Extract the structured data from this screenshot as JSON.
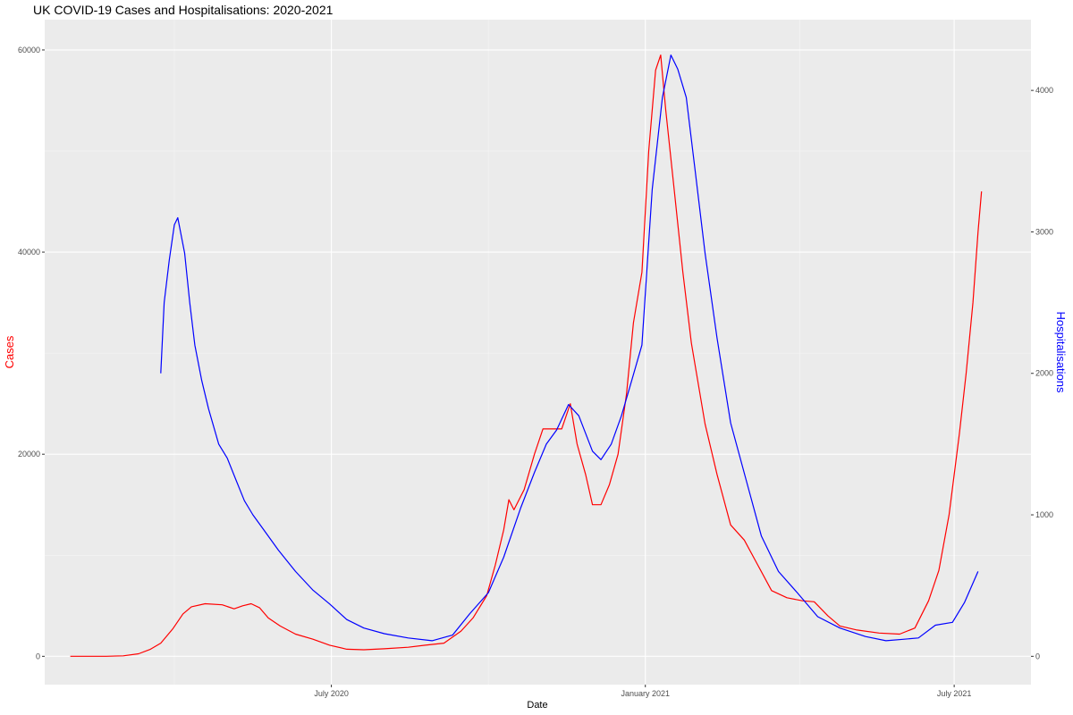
{
  "chart_data": {
    "type": "line",
    "title": "UK COVID-19 Cases and Hospitalisations: 2020-2021",
    "xlabel": "Date",
    "ylabel_left": "Cases",
    "ylabel_right": "Hospitalisations",
    "x_ticks": [
      "July 2020",
      "January 2021",
      "July 2021"
    ],
    "x_tick_dates": [
      "2020-07-01",
      "2021-01-01",
      "2021-07-01"
    ],
    "xlim": [
      "2020-01-15",
      "2021-08-15"
    ],
    "y_left_ticks": [
      0,
      20000,
      40000,
      60000
    ],
    "y_left_lim": [
      -2800,
      63000
    ],
    "y_right_ticks": [
      0,
      1000,
      2000,
      3000,
      4000
    ],
    "y_right_lim": [
      -200,
      4500
    ],
    "grid": true,
    "colors": {
      "cases": "#ff0000",
      "hospitalisations": "#0000ff",
      "panel": "#ebebeb",
      "grid": "#ffffff"
    },
    "series": [
      {
        "name": "Cases",
        "axis": "left",
        "color": "#ff0000",
        "points": [
          [
            "2020-01-30",
            0
          ],
          [
            "2020-02-20",
            0
          ],
          [
            "2020-03-01",
            50
          ],
          [
            "2020-03-10",
            250
          ],
          [
            "2020-03-17",
            700
          ],
          [
            "2020-03-23",
            1300
          ],
          [
            "2020-03-30",
            2700
          ],
          [
            "2020-04-05",
            4200
          ],
          [
            "2020-04-10",
            4900
          ],
          [
            "2020-04-18",
            5200
          ],
          [
            "2020-04-28",
            5100
          ],
          [
            "2020-05-05",
            4700
          ],
          [
            "2020-05-10",
            5000
          ],
          [
            "2020-05-15",
            5200
          ],
          [
            "2020-05-20",
            4800
          ],
          [
            "2020-05-25",
            3800
          ],
          [
            "2020-06-01",
            3000
          ],
          [
            "2020-06-10",
            2200
          ],
          [
            "2020-06-20",
            1700
          ],
          [
            "2020-06-30",
            1100
          ],
          [
            "2020-07-10",
            700
          ],
          [
            "2020-07-20",
            650
          ],
          [
            "2020-08-01",
            750
          ],
          [
            "2020-08-15",
            900
          ],
          [
            "2020-08-25",
            1100
          ],
          [
            "2020-09-05",
            1300
          ],
          [
            "2020-09-15",
            2500
          ],
          [
            "2020-09-22",
            3800
          ],
          [
            "2020-09-30",
            6000
          ],
          [
            "2020-10-05",
            9000
          ],
          [
            "2020-10-10",
            12500
          ],
          [
            "2020-10-13",
            15500
          ],
          [
            "2020-10-16",
            14500
          ],
          [
            "2020-10-22",
            16500
          ],
          [
            "2020-10-28",
            20000
          ],
          [
            "2020-11-02",
            22500
          ],
          [
            "2020-11-07",
            22500
          ],
          [
            "2020-11-13",
            22500
          ],
          [
            "2020-11-18",
            25000
          ],
          [
            "2020-11-22",
            21000
          ],
          [
            "2020-11-27",
            18000
          ],
          [
            "2020-12-01",
            15000
          ],
          [
            "2020-12-06",
            15000
          ],
          [
            "2020-12-11",
            17000
          ],
          [
            "2020-12-16",
            20000
          ],
          [
            "2020-12-21",
            26000
          ],
          [
            "2020-12-25",
            33000
          ],
          [
            "2020-12-30",
            38000
          ],
          [
            "2021-01-03",
            50000
          ],
          [
            "2021-01-07",
            58000
          ],
          [
            "2021-01-10",
            59500
          ],
          [
            "2021-01-13",
            54000
          ],
          [
            "2021-01-18",
            46000
          ],
          [
            "2021-01-23",
            38000
          ],
          [
            "2021-01-28",
            31000
          ],
          [
            "2021-02-05",
            23000
          ],
          [
            "2021-02-12",
            18000
          ],
          [
            "2021-02-20",
            13000
          ],
          [
            "2021-02-28",
            11500
          ],
          [
            "2021-03-08",
            9000
          ],
          [
            "2021-03-16",
            6500
          ],
          [
            "2021-03-25",
            5800
          ],
          [
            "2021-04-03",
            5500
          ],
          [
            "2021-04-10",
            5400
          ],
          [
            "2021-04-18",
            4000
          ],
          [
            "2021-04-25",
            3000
          ],
          [
            "2021-05-05",
            2600
          ],
          [
            "2021-05-18",
            2300
          ],
          [
            "2021-05-30",
            2200
          ],
          [
            "2021-06-08",
            2800
          ],
          [
            "2021-06-16",
            5500
          ],
          [
            "2021-06-22",
            8500
          ],
          [
            "2021-06-28",
            14000
          ],
          [
            "2021-07-04",
            22000
          ],
          [
            "2021-07-08",
            28000
          ],
          [
            "2021-07-12",
            35000
          ],
          [
            "2021-07-15",
            42000
          ],
          [
            "2021-07-17",
            46000
          ]
        ]
      },
      {
        "name": "Hospitalisations",
        "axis": "right",
        "color": "#0000ff",
        "points": [
          [
            "2020-03-23",
            2000
          ],
          [
            "2020-03-25",
            2500
          ],
          [
            "2020-03-28",
            2800
          ],
          [
            "2020-03-31",
            3050
          ],
          [
            "2020-04-02",
            3100
          ],
          [
            "2020-04-06",
            2850
          ],
          [
            "2020-04-09",
            2500
          ],
          [
            "2020-04-12",
            2200
          ],
          [
            "2020-04-16",
            1950
          ],
          [
            "2020-04-20",
            1750
          ],
          [
            "2020-04-26",
            1500
          ],
          [
            "2020-05-01",
            1400
          ],
          [
            "2020-05-06",
            1250
          ],
          [
            "2020-05-11",
            1100
          ],
          [
            "2020-05-16",
            1000
          ],
          [
            "2020-05-22",
            900
          ],
          [
            "2020-05-31",
            750
          ],
          [
            "2020-06-10",
            600
          ],
          [
            "2020-06-20",
            470
          ],
          [
            "2020-06-30",
            370
          ],
          [
            "2020-07-10",
            260
          ],
          [
            "2020-07-20",
            200
          ],
          [
            "2020-08-01",
            160
          ],
          [
            "2020-08-15",
            130
          ],
          [
            "2020-08-29",
            110
          ],
          [
            "2020-09-10",
            150
          ],
          [
            "2020-09-20",
            300
          ],
          [
            "2020-10-01",
            450
          ],
          [
            "2020-10-10",
            700
          ],
          [
            "2020-10-20",
            1050
          ],
          [
            "2020-10-28",
            1300
          ],
          [
            "2020-11-04",
            1500
          ],
          [
            "2020-11-10",
            1600
          ],
          [
            "2020-11-17",
            1780
          ],
          [
            "2020-11-23",
            1700
          ],
          [
            "2020-12-01",
            1450
          ],
          [
            "2020-12-06",
            1390
          ],
          [
            "2020-12-12",
            1500
          ],
          [
            "2020-12-18",
            1700
          ],
          [
            "2020-12-24",
            1950
          ],
          [
            "2020-12-30",
            2200
          ],
          [
            "2021-01-05",
            3300
          ],
          [
            "2021-01-11",
            3950
          ],
          [
            "2021-01-16",
            4250
          ],
          [
            "2021-01-20",
            4150
          ],
          [
            "2021-01-25",
            3950
          ],
          [
            "2021-01-30",
            3450
          ],
          [
            "2021-02-05",
            2850
          ],
          [
            "2021-02-12",
            2250
          ],
          [
            "2021-02-20",
            1650
          ],
          [
            "2021-03-01",
            1250
          ],
          [
            "2021-03-10",
            850
          ],
          [
            "2021-03-20",
            600
          ],
          [
            "2021-03-31",
            450
          ],
          [
            "2021-04-12",
            280
          ],
          [
            "2021-04-25",
            200
          ],
          [
            "2021-05-10",
            140
          ],
          [
            "2021-05-22",
            110
          ],
          [
            "2021-06-01",
            120
          ],
          [
            "2021-06-10",
            130
          ],
          [
            "2021-06-20",
            220
          ],
          [
            "2021-06-30",
            240
          ],
          [
            "2021-07-07",
            380
          ],
          [
            "2021-07-15",
            600
          ]
        ]
      }
    ]
  }
}
